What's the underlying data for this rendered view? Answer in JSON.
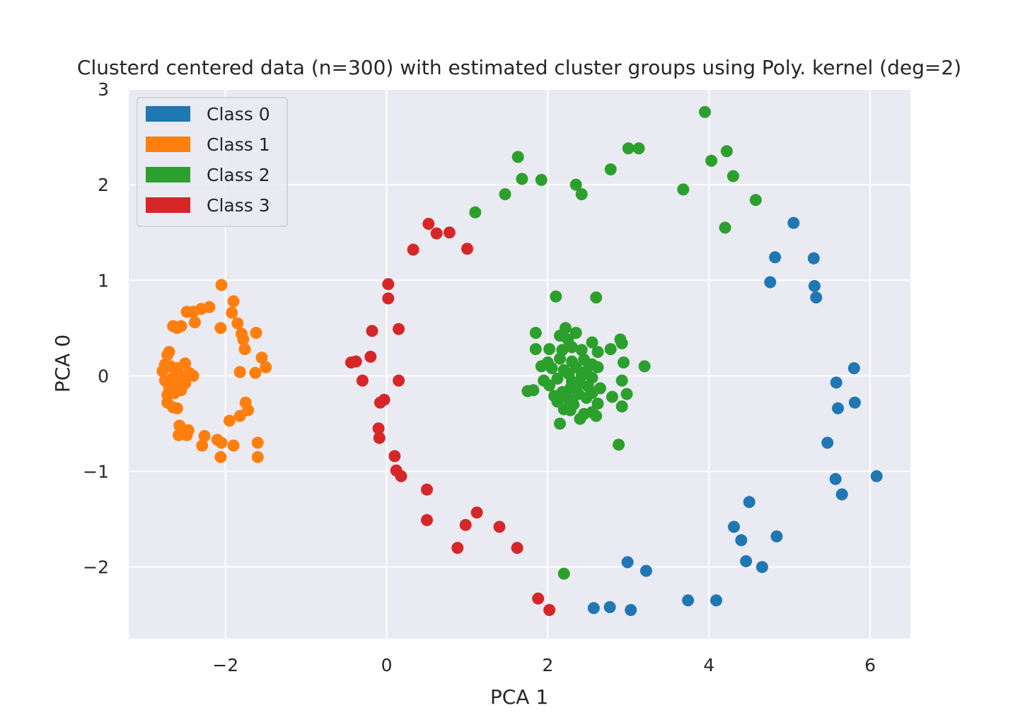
{
  "chart_data": {
    "type": "scatter",
    "title": "Clusterd centered data (n=300) with estimated cluster groups using Poly. kernel (deg=2)",
    "xlabel": "PCA 1",
    "ylabel": "PCA 0",
    "xlim": [
      -3.2,
      6.5
    ],
    "ylim": [
      -2.75,
      3.0
    ],
    "xticks": [
      -2,
      0,
      2,
      4,
      6
    ],
    "yticks": [
      -2,
      -1,
      0,
      1,
      2,
      3
    ],
    "xtick_labels": [
      "−2",
      "0",
      "2",
      "4",
      "6"
    ],
    "ytick_labels": [
      "−2",
      "−1",
      "0",
      "1",
      "2",
      "3"
    ],
    "grid": true,
    "legend_position": "top-left",
    "series": [
      {
        "name": "Class 0",
        "color": "#1f77b4",
        "points": [
          [
            5.05,
            1.6
          ],
          [
            4.82,
            1.24
          ],
          [
            5.3,
            1.23
          ],
          [
            4.76,
            0.98
          ],
          [
            5.31,
            0.94
          ],
          [
            5.33,
            0.82
          ],
          [
            5.8,
            0.08
          ],
          [
            5.58,
            -0.07
          ],
          [
            5.6,
            -0.34
          ],
          [
            5.81,
            -0.28
          ],
          [
            5.47,
            -0.7
          ],
          [
            5.57,
            -1.08
          ],
          [
            5.65,
            -1.24
          ],
          [
            6.08,
            -1.05
          ],
          [
            4.5,
            -1.32
          ],
          [
            4.31,
            -1.58
          ],
          [
            4.4,
            -1.72
          ],
          [
            4.84,
            -1.68
          ],
          [
            4.46,
            -1.94
          ],
          [
            4.66,
            -2.0
          ],
          [
            2.99,
            -1.95
          ],
          [
            3.22,
            -2.04
          ],
          [
            3.74,
            -2.35
          ],
          [
            4.09,
            -2.35
          ],
          [
            2.57,
            -2.43
          ],
          [
            2.77,
            -2.42
          ],
          [
            3.03,
            -2.45
          ]
        ]
      },
      {
        "name": "Class 1",
        "color": "#ff7f0e",
        "points": [
          [
            -2.05,
            0.95
          ],
          [
            -1.9,
            0.78
          ],
          [
            -1.92,
            0.66
          ],
          [
            -2.2,
            0.72
          ],
          [
            -2.3,
            0.7
          ],
          [
            -2.4,
            0.67
          ],
          [
            -2.48,
            0.67
          ],
          [
            -2.38,
            0.56
          ],
          [
            -2.55,
            0.52
          ],
          [
            -2.6,
            0.5
          ],
          [
            -2.65,
            0.52
          ],
          [
            -2.06,
            0.5
          ],
          [
            -1.85,
            0.55
          ],
          [
            -1.8,
            0.44
          ],
          [
            -1.62,
            0.45
          ],
          [
            -1.78,
            0.38
          ],
          [
            -1.76,
            0.28
          ],
          [
            -1.55,
            0.19
          ],
          [
            -1.5,
            0.09
          ],
          [
            -1.63,
            0.03
          ],
          [
            -1.82,
            0.04
          ],
          [
            -2.72,
            0.22
          ],
          [
            -2.7,
            0.25
          ],
          [
            -2.75,
            0.12
          ],
          [
            -2.78,
            0.05
          ],
          [
            -2.68,
            0.1
          ],
          [
            -2.6,
            0.08
          ],
          [
            -2.5,
            0.13
          ],
          [
            -2.45,
            0.03
          ],
          [
            -2.4,
            0.0
          ],
          [
            -2.55,
            0.0
          ],
          [
            -2.65,
            -0.02
          ],
          [
            -2.75,
            -0.05
          ],
          [
            -2.7,
            -0.12
          ],
          [
            -2.6,
            -0.1
          ],
          [
            -2.5,
            -0.08
          ],
          [
            -2.72,
            -0.2
          ],
          [
            -2.63,
            -0.18
          ],
          [
            -2.55,
            -0.15
          ],
          [
            -2.72,
            -0.28
          ],
          [
            -2.65,
            -0.33
          ],
          [
            -2.6,
            -0.34
          ],
          [
            -1.75,
            -0.28
          ],
          [
            -1.72,
            -0.36
          ],
          [
            -1.82,
            -0.42
          ],
          [
            -1.95,
            -0.47
          ],
          [
            -2.57,
            -0.52
          ],
          [
            -2.52,
            -0.58
          ],
          [
            -2.46,
            -0.57
          ],
          [
            -2.58,
            -0.62
          ],
          [
            -2.48,
            -0.62
          ],
          [
            -2.26,
            -0.63
          ],
          [
            -2.1,
            -0.67
          ],
          [
            -2.05,
            -0.7
          ],
          [
            -1.6,
            -0.7
          ],
          [
            -2.29,
            -0.73
          ],
          [
            -1.9,
            -0.73
          ],
          [
            -2.06,
            -0.85
          ],
          [
            -1.6,
            -0.85
          ]
        ]
      },
      {
        "name": "Class 2",
        "color": "#2ca02c",
        "points": [
          [
            3.95,
            2.76
          ],
          [
            3.0,
            2.38
          ],
          [
            3.13,
            2.38
          ],
          [
            4.22,
            2.35
          ],
          [
            1.63,
            2.29
          ],
          [
            4.03,
            2.25
          ],
          [
            2.78,
            2.16
          ],
          [
            4.3,
            2.09
          ],
          [
            1.68,
            2.06
          ],
          [
            1.92,
            2.05
          ],
          [
            2.35,
            2.0
          ],
          [
            3.68,
            1.95
          ],
          [
            1.47,
            1.9
          ],
          [
            2.42,
            1.9
          ],
          [
            4.58,
            1.84
          ],
          [
            1.1,
            1.71
          ],
          [
            4.2,
            1.55
          ],
          [
            2.1,
            0.83
          ],
          [
            2.6,
            0.82
          ],
          [
            2.22,
            0.5
          ],
          [
            2.35,
            0.45
          ],
          [
            1.85,
            0.45
          ],
          [
            2.15,
            0.42
          ],
          [
            2.25,
            0.38
          ],
          [
            2.55,
            0.35
          ],
          [
            2.3,
            0.3
          ],
          [
            2.9,
            0.38
          ],
          [
            2.92,
            0.34
          ],
          [
            1.85,
            0.28
          ],
          [
            2.02,
            0.28
          ],
          [
            2.18,
            0.27
          ],
          [
            2.42,
            0.27
          ],
          [
            2.62,
            0.25
          ],
          [
            2.78,
            0.28
          ],
          [
            2.15,
            0.18
          ],
          [
            2.3,
            0.15
          ],
          [
            2.45,
            0.17
          ],
          [
            2.55,
            0.12
          ],
          [
            2.0,
            0.14
          ],
          [
            2.94,
            0.14
          ],
          [
            1.92,
            0.1
          ],
          [
            2.05,
            0.08
          ],
          [
            2.2,
            0.06
          ],
          [
            2.35,
            0.09
          ],
          [
            2.48,
            0.05
          ],
          [
            2.62,
            0.09
          ],
          [
            3.2,
            0.1
          ],
          [
            2.26,
            0.02
          ],
          [
            2.42,
            0.0
          ],
          [
            2.55,
            -0.02
          ],
          [
            2.12,
            -0.03
          ],
          [
            2.3,
            -0.06
          ],
          [
            1.95,
            -0.05
          ],
          [
            2.4,
            -0.08
          ],
          [
            2.92,
            -0.05
          ],
          [
            2.02,
            -0.1
          ],
          [
            2.28,
            -0.13
          ],
          [
            2.5,
            -0.11
          ],
          [
            2.65,
            -0.13
          ],
          [
            1.75,
            -0.16
          ],
          [
            1.82,
            -0.15
          ],
          [
            2.18,
            -0.17
          ],
          [
            2.38,
            -0.19
          ],
          [
            2.55,
            -0.18
          ],
          [
            2.98,
            -0.19
          ],
          [
            2.08,
            -0.21
          ],
          [
            2.25,
            -0.24
          ],
          [
            2.48,
            -0.23
          ],
          [
            2.8,
            -0.22
          ],
          [
            2.12,
            -0.27
          ],
          [
            2.32,
            -0.3
          ],
          [
            2.62,
            -0.29
          ],
          [
            2.2,
            -0.35
          ],
          [
            2.28,
            -0.36
          ],
          [
            2.92,
            -0.32
          ],
          [
            2.55,
            -0.38
          ],
          [
            2.45,
            -0.4
          ],
          [
            2.6,
            -0.42
          ],
          [
            2.4,
            -0.45
          ],
          [
            2.15,
            -0.5
          ],
          [
            2.88,
            -0.72
          ],
          [
            2.2,
            -2.07
          ]
        ]
      },
      {
        "name": "Class 3",
        "color": "#d62728",
        "points": [
          [
            0.52,
            1.59
          ],
          [
            0.62,
            1.49
          ],
          [
            0.78,
            1.5
          ],
          [
            0.33,
            1.32
          ],
          [
            1.0,
            1.33
          ],
          [
            0.02,
            0.96
          ],
          [
            0.02,
            0.81
          ],
          [
            -0.18,
            0.47
          ],
          [
            0.15,
            0.49
          ],
          [
            -0.2,
            0.2
          ],
          [
            -0.38,
            0.15
          ],
          [
            -0.44,
            0.14
          ],
          [
            -0.3,
            -0.05
          ],
          [
            0.15,
            -0.05
          ],
          [
            -0.03,
            -0.25
          ],
          [
            -0.08,
            -0.28
          ],
          [
            -0.1,
            -0.55
          ],
          [
            -0.09,
            -0.65
          ],
          [
            0.1,
            -0.84
          ],
          [
            0.12,
            -0.99
          ],
          [
            0.18,
            -1.05
          ],
          [
            0.5,
            -1.19
          ],
          [
            0.5,
            -1.51
          ],
          [
            1.12,
            -1.43
          ],
          [
            0.98,
            -1.56
          ],
          [
            1.4,
            -1.58
          ],
          [
            0.88,
            -1.8
          ],
          [
            1.62,
            -1.8
          ],
          [
            1.88,
            -2.33
          ],
          [
            2.02,
            -2.45
          ]
        ]
      }
    ]
  }
}
